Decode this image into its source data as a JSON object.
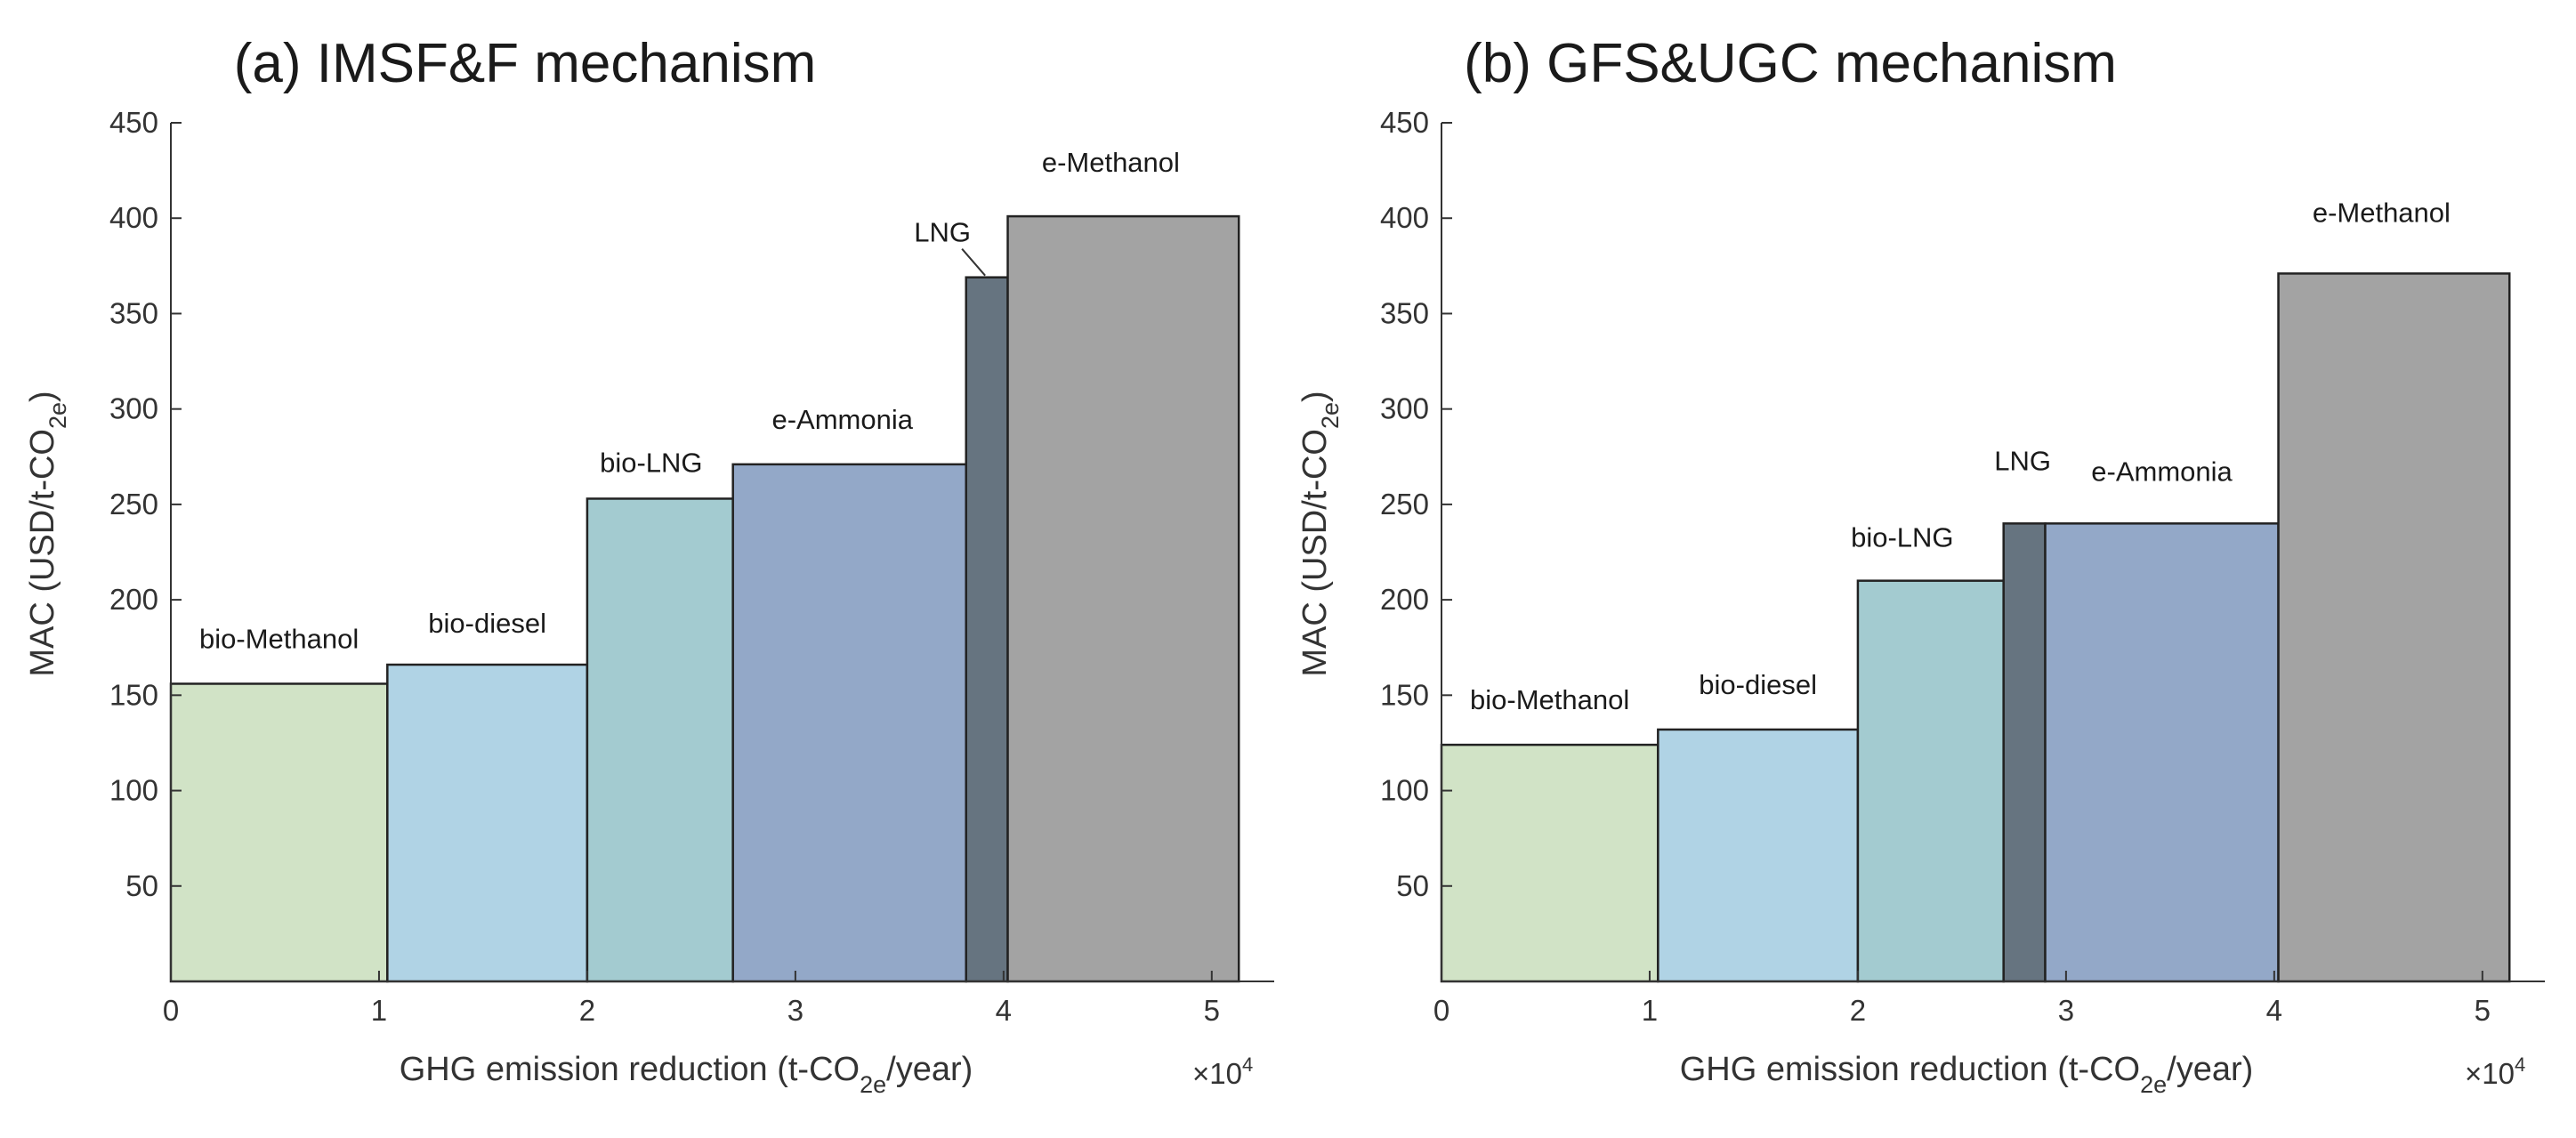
{
  "chart_data": [
    {
      "type": "bar",
      "variant": "marginal-abatement-cost-curve",
      "title": "(a) IMSF&F mechanism",
      "xlabel": {
        "pre": "GHG emission reduction (t-CO",
        "sub": "2e",
        "post": "/year)"
      },
      "ylabel": {
        "pre": "MAC (USD/t-CO",
        "sub": "2e",
        "post": ")"
      },
      "x_multiplier": {
        "prefix": "×10",
        "exponent": "4"
      },
      "xlim": [
        0,
        5.3
      ],
      "ylim": [
        0,
        450
      ],
      "xticks": [
        0,
        1,
        2,
        3,
        4,
        5
      ],
      "yticks": [
        50,
        100,
        150,
        200,
        250,
        300,
        350,
        400,
        450
      ],
      "grid": false,
      "series": [
        {
          "name": "bio-Methanol",
          "x_start": 0.0,
          "x_end": 1.04,
          "value": 156,
          "color": "#d1e3c6"
        },
        {
          "name": "bio-diesel",
          "x_start": 1.04,
          "x_end": 2.0,
          "value": 166,
          "color": "#b0d3e5"
        },
        {
          "name": "bio-LNG",
          "x_start": 2.0,
          "x_end": 2.7,
          "value": 253,
          "color": "#a3cbd0"
        },
        {
          "name": "e-Ammonia",
          "x_start": 2.7,
          "x_end": 3.82,
          "value": 271,
          "color": "#93a8c8"
        },
        {
          "name": "LNG",
          "x_start": 3.82,
          "x_end": 4.02,
          "value": 369,
          "color": "#667480"
        },
        {
          "name": "e-Methanol",
          "x_start": 4.02,
          "x_end": 5.13,
          "value": 401,
          "color": "#a3a3a3"
        }
      ]
    },
    {
      "type": "bar",
      "variant": "marginal-abatement-cost-curve",
      "title": "(b) GFS&UGC mechanism",
      "xlabel": {
        "pre": "GHG emission reduction (t-CO",
        "sub": "2e",
        "post": "/year)"
      },
      "ylabel": {
        "pre": "MAC (USD/t-CO",
        "sub": "2e",
        "post": ")"
      },
      "x_multiplier": {
        "prefix": "×10",
        "exponent": "4"
      },
      "xlim": [
        0,
        5.3
      ],
      "ylim": [
        0,
        450
      ],
      "xticks": [
        0,
        1,
        2,
        3,
        4,
        5
      ],
      "yticks": [
        50,
        100,
        150,
        200,
        250,
        300,
        350,
        400,
        450
      ],
      "grid": false,
      "series": [
        {
          "name": "bio-Methanol",
          "x_start": 0.0,
          "x_end": 1.04,
          "value": 124,
          "color": "#d1e3c6"
        },
        {
          "name": "bio-diesel",
          "x_start": 1.04,
          "x_end": 2.0,
          "value": 132,
          "color": "#b0d3e5"
        },
        {
          "name": "bio-LNG",
          "x_start": 2.0,
          "x_end": 2.7,
          "value": 210,
          "color": "#a3cbd0"
        },
        {
          "name": "LNG",
          "x_start": 2.7,
          "x_end": 2.9,
          "value": 240,
          "color": "#667480"
        },
        {
          "name": "e-Ammonia",
          "x_start": 2.9,
          "x_end": 4.02,
          "value": 240,
          "color": "#93a8c8"
        },
        {
          "name": "e-Methanol",
          "x_start": 4.02,
          "x_end": 5.13,
          "value": 371,
          "color": "#a3a3a3"
        }
      ]
    }
  ]
}
